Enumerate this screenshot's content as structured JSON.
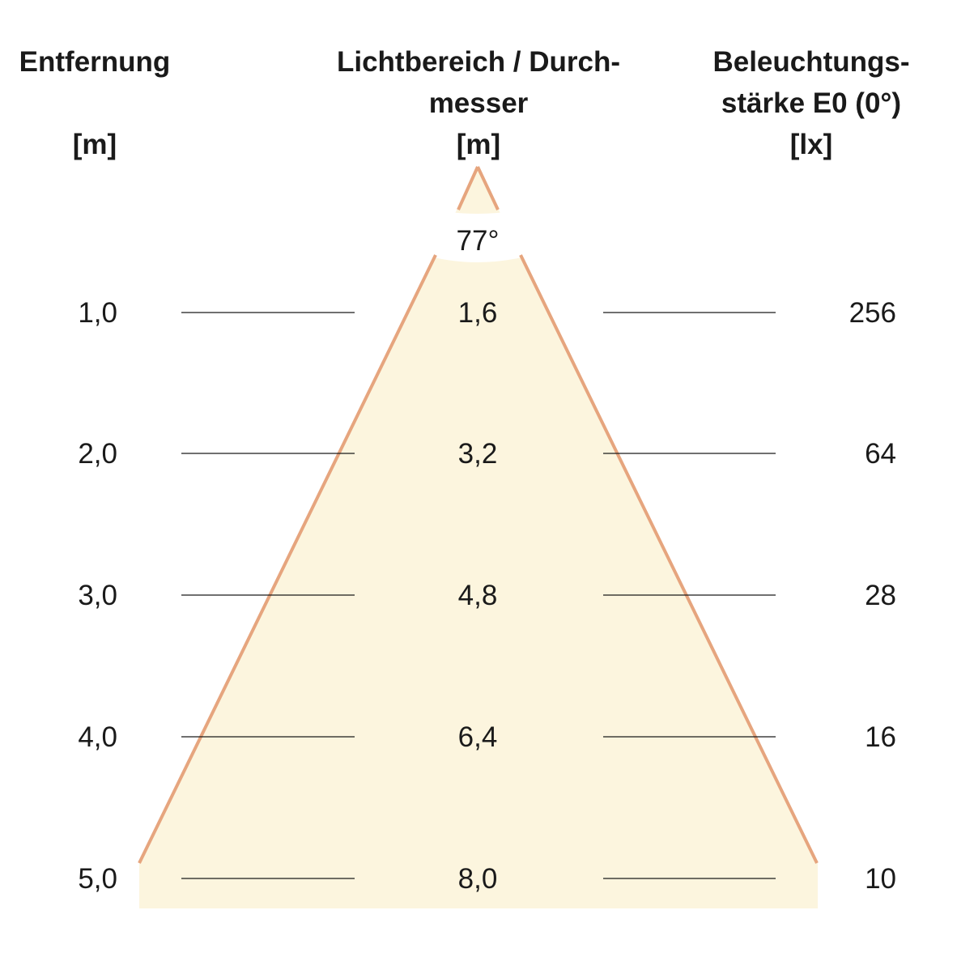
{
  "headers": {
    "distance": {
      "lines": [
        "Entfernung",
        "",
        "[m]"
      ]
    },
    "diameter": {
      "lines": [
        "Lichtbereich / Durch-",
        "messer",
        "[m]"
      ]
    },
    "illuminance": {
      "lines": [
        "Beleuchtungs-",
        "stärke E0 (0°)",
        "[lx]"
      ]
    }
  },
  "beam_angle": "77°",
  "rows": [
    {
      "distance": "1,0",
      "diameter": "1,6",
      "illuminance": "256"
    },
    {
      "distance": "2,0",
      "diameter": "3,2",
      "illuminance": "64"
    },
    {
      "distance": "3,0",
      "diameter": "4,8",
      "illuminance": "28"
    },
    {
      "distance": "4,0",
      "diameter": "6,4",
      "illuminance": "16"
    },
    {
      "distance": "5,0",
      "diameter": "8,0",
      "illuminance": "10"
    }
  ],
  "colors": {
    "cone_fill": "#fcf5de",
    "cone_edge": "#e6a57e",
    "text": "#1a1a1a"
  }
}
